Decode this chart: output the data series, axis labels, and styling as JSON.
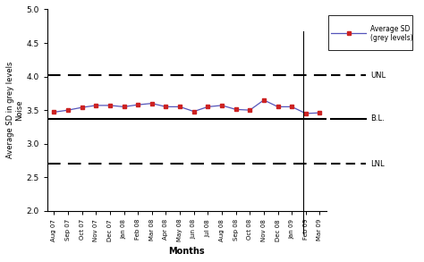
{
  "months": [
    "Aug 07",
    "Sep 07",
    "Oct 07",
    "Nov 07",
    "Dec 07",
    "Jan 08",
    "Feb 08",
    "Mar 08",
    "Apr 08",
    "May 08",
    "Jun 08",
    "Jul 08",
    "Aug 08",
    "Sep 08",
    "Oct 08",
    "Nov 08",
    "Dec 08",
    "Jan 09",
    "Feb 09",
    "Mar 09"
  ],
  "values": [
    3.47,
    3.5,
    3.54,
    3.57,
    3.57,
    3.55,
    3.58,
    3.6,
    3.55,
    3.55,
    3.48,
    3.55,
    3.57,
    3.51,
    3.5,
    3.65,
    3.55,
    3.55,
    3.45,
    3.46
  ],
  "UNL": 4.02,
  "BL": 3.37,
  "LNL": 2.7,
  "ylim": [
    2.0,
    5.0
  ],
  "ylabel": "Average SD in grey levels\nNoise",
  "xlabel": "Months",
  "line_color": "#5555bb",
  "marker_color": "#cc2222",
  "bl_color": "#000000",
  "unl_lnl_color": "#000000",
  "legend_label": "Average SD\n(grey levels)"
}
